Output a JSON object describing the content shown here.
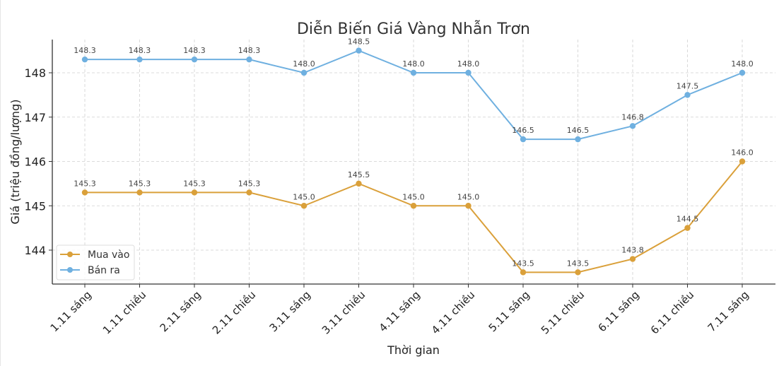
{
  "chart_data": {
    "type": "line",
    "title": "Diễn Biến Giá Vàng Nhẫn Trơn",
    "xlabel": "Thời gian",
    "ylabel": "Giá (triệu đồng/lượng)",
    "categories": [
      "1.11 sáng",
      "1.11 chiều",
      "2.11 sáng",
      "2.11 chiều",
      "3.11 sáng",
      "3.11 chiều",
      "4.11 sáng",
      "4.11 chiều",
      "5.11 sáng",
      "5.11 chiều",
      "6.11 sáng",
      "6.11 chiều",
      "7.11 sáng"
    ],
    "series": [
      {
        "name": "Mua vào",
        "color": "#daa03a",
        "values": [
          145.3,
          145.3,
          145.3,
          145.3,
          145.0,
          145.5,
          145.0,
          145.0,
          143.5,
          143.5,
          143.8,
          144.5,
          146.0
        ]
      },
      {
        "name": "Bán ra",
        "color": "#6fb0e0",
        "values": [
          148.3,
          148.3,
          148.3,
          148.3,
          148.0,
          148.5,
          148.0,
          148.0,
          146.5,
          146.5,
          146.8,
          147.5,
          148.0
        ]
      }
    ],
    "yticks": [
      144,
      145,
      146,
      147,
      148
    ],
    "ylim": [
      143.2,
      148.75
    ],
    "grid": true,
    "legend_position": "lower left",
    "data_labels": true
  }
}
